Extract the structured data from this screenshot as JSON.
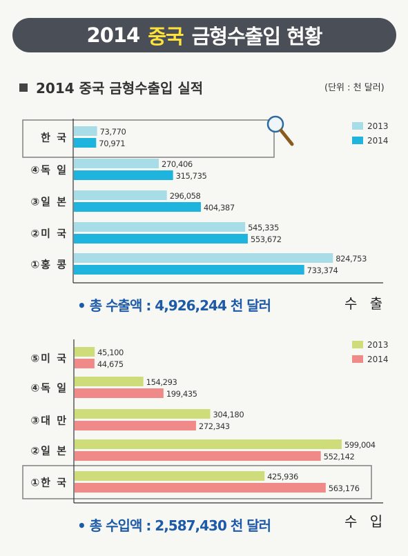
{
  "title": {
    "prefix": "2014",
    "highlight": "중국",
    "suffix": "금형수출입 현황"
  },
  "section": {
    "title": "2014 중국 금형수출입 실적",
    "unit": "(단위 : 천 달러)"
  },
  "chart_data": [
    {
      "type": "bar",
      "orientation": "horizontal",
      "name": "수출",
      "categories": [
        "한 국",
        "④독 일",
        "③일 본",
        "②미 국",
        "①홍 콩"
      ],
      "highlighted_category": "한 국",
      "series": [
        {
          "name": "2013",
          "color": "#a8dde8",
          "values": [
            73770,
            270406,
            296058,
            545335,
            824753
          ]
        },
        {
          "name": "2014",
          "color": "#1fb4de",
          "values": [
            70971,
            315735,
            404387,
            553672,
            733374
          ]
        }
      ],
      "value_labels": {
        "2013": [
          "73,770",
          "270,406",
          "296,058",
          "545,335",
          "824,753"
        ],
        "2014": [
          "70,971",
          "315,735",
          "404,387",
          "553,672",
          "733,374"
        ]
      },
      "axis_word": "수 출",
      "total": "총 수출액 : 4,926,244 천 달러"
    },
    {
      "type": "bar",
      "orientation": "horizontal",
      "name": "수입",
      "categories": [
        "⑤미 국",
        "④독 일",
        "③대 만",
        "②일 본",
        "①한 국"
      ],
      "highlighted_category": "①한 국",
      "series": [
        {
          "name": "2013",
          "color": "#cfdc7a",
          "values": [
            45100,
            154293,
            304180,
            599004,
            425936
          ]
        },
        {
          "name": "2014",
          "color": "#f08a88",
          "values": [
            44675,
            199435,
            272343,
            552142,
            563176
          ]
        }
      ],
      "value_labels": {
        "2013": [
          "45,100",
          "154,293",
          "304,180",
          "599,004",
          "425,936"
        ],
        "2014": [
          "44,675",
          "199,435",
          "272,343",
          "552,142",
          "563,176"
        ]
      },
      "axis_word": "수 입",
      "total": "총 수입액 : 2,587,430 천 달러"
    }
  ]
}
